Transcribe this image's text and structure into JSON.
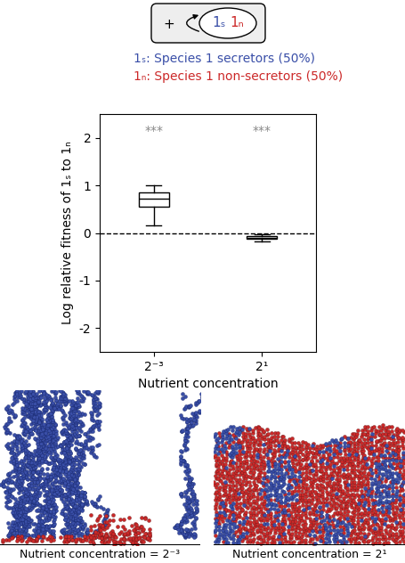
{
  "diagram": {
    "sign": "+",
    "members": [
      {
        "text": "1ₛ",
        "color": "#3a4fa8"
      },
      {
        "text": "1ₙ",
        "color": "#cc2929"
      }
    ],
    "legend": [
      {
        "text": "1ₛ: Species 1 secretors (50%)",
        "color": "#3a4fa8"
      },
      {
        "text": "1ₙ: Species 1 non-secretors (50%)",
        "color": "#cc2929"
      }
    ]
  },
  "chart_data": {
    "type": "box",
    "categories": [
      "2⁻³",
      "2¹"
    ],
    "boxes": [
      {
        "whislo": 0.15,
        "q1": 0.55,
        "med": 0.72,
        "q3": 0.85,
        "whishi": 1.0
      },
      {
        "whislo": -0.17,
        "q1": -0.13,
        "med": -0.1,
        "q3": -0.07,
        "whishi": -0.03
      }
    ],
    "ylabel": "Log relative fitness of 1ₛ to 1ₙ",
    "xlabel": "Nutrient concentration",
    "ylim": [
      -2.5,
      2.5
    ],
    "yticks": [
      -2,
      -1,
      0,
      1,
      2
    ],
    "reference_line": 0,
    "annotations": [
      {
        "category": "2⁻³",
        "text": "***"
      },
      {
        "category": "2¹",
        "text": "***"
      }
    ]
  },
  "panels": [
    {
      "caption": "Nutrient concentration = 2⁻³"
    },
    {
      "caption": "Nutrient concentration = 2¹"
    }
  ]
}
